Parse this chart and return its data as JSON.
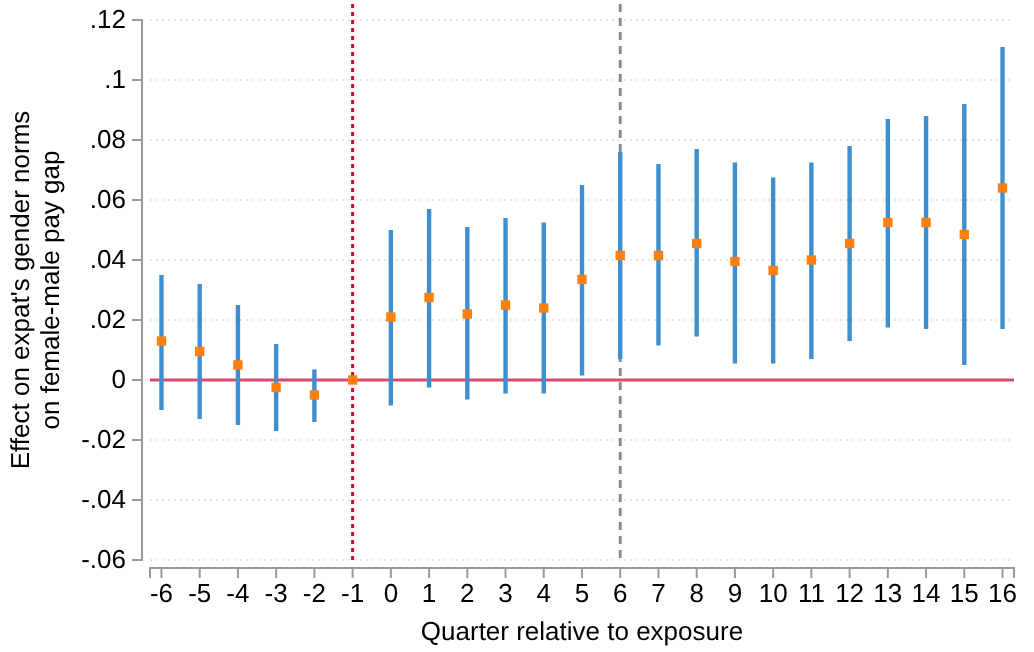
{
  "chart_data": {
    "type": "scatter",
    "xlabel": "Quarter relative to exposure",
    "ylabel": "Effect on expat's gender norms on female-male pay gap",
    "x": [
      -6,
      -5,
      -4,
      -3,
      -2,
      -1,
      0,
      1,
      2,
      3,
      4,
      5,
      6,
      7,
      8,
      9,
      10,
      11,
      12,
      13,
      14,
      15,
      16
    ],
    "series": [
      {
        "color": "#ff7f0e",
        "values": [
          0.013,
          0.0095,
          0.005,
          -0.0025,
          -0.005,
          0,
          0.021,
          0.0275,
          0.022,
          0.025,
          0.024,
          0.0335,
          0.0415,
          0.0415,
          0.0455,
          0.0395,
          0.0365,
          0.04,
          0.0455,
          0.0525,
          0.0525,
          0.0485,
          0.064
        ],
        "errors": [
          [
            -0.01,
            0.035
          ],
          [
            -0.013,
            0.032
          ],
          [
            -0.015,
            0.025
          ],
          [
            -0.017,
            0.012
          ],
          [
            -0.014,
            0.0035
          ],
          null,
          [
            -0.0085,
            0.05
          ],
          [
            -0.0025,
            0.057
          ],
          [
            -0.0065,
            0.051
          ],
          [
            -0.0045,
            0.054
          ],
          [
            -0.0045,
            0.0525
          ],
          [
            0.0015,
            0.065
          ],
          [
            0.007,
            0.076
          ],
          [
            0.0115,
            0.072
          ],
          [
            0.0145,
            0.077
          ],
          [
            0.0055,
            0.0725
          ],
          [
            0.0055,
            0.0675
          ],
          [
            0.007,
            0.0725
          ],
          [
            0.013,
            0.078
          ],
          [
            0.0175,
            0.087
          ],
          [
            0.017,
            0.088
          ],
          [
            0.005,
            0.092
          ],
          [
            0.017,
            0.111
          ]
        ]
      }
    ],
    "xlim": [
      -6.3,
      16.3
    ],
    "xticks": [
      -6,
      -5,
      -4,
      -3,
      -2,
      -1,
      0,
      1,
      2,
      3,
      4,
      5,
      6,
      7,
      8,
      9,
      10,
      11,
      12,
      13,
      14,
      15,
      16
    ],
    "ylim": [
      -0.06,
      0.12
    ],
    "yticks": [
      {
        "value": -0.06,
        "label": "-.06"
      },
      {
        "value": -0.04,
        "label": "-.04"
      },
      {
        "value": -0.02,
        "label": "-.02"
      },
      0,
      {
        "value": 0.02,
        "label": ".02"
      },
      {
        "value": 0.04,
        "label": ".04"
      },
      {
        "value": 0.06,
        "label": ".06"
      },
      {
        "value": 0.08,
        "label": ".08"
      },
      {
        "value": 0.1,
        "label": ".1"
      },
      {
        "value": 0.12,
        "label": ".12"
      }
    ],
    "grid": "y",
    "marker": "square",
    "ref_lines": [
      {
        "axis": "y",
        "value": 0,
        "color": "#d9486e",
        "line_style": "solid"
      },
      {
        "axis": "x",
        "value": -1,
        "color": "#c8102e",
        "line_style": "dotted"
      },
      {
        "axis": "x",
        "value": 6,
        "color": "#8c8c8c",
        "line_style": "dashed"
      }
    ]
  }
}
